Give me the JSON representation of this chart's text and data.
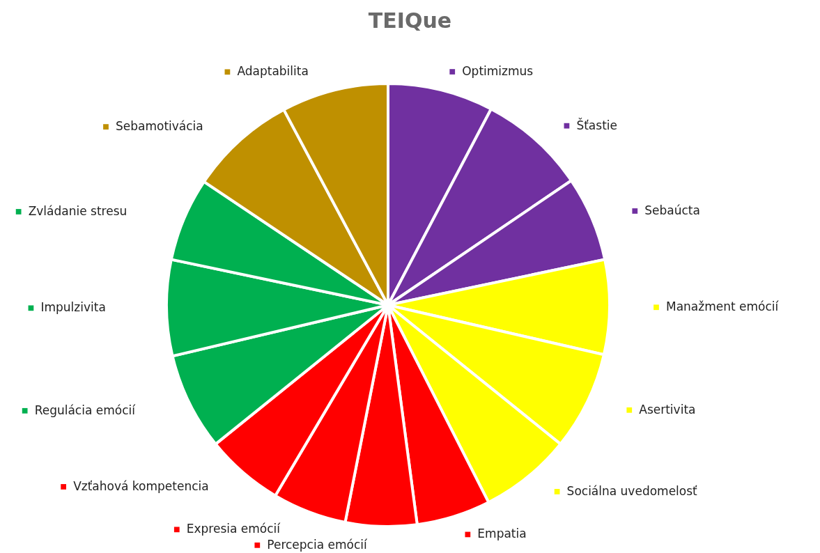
{
  "chart_data": {
    "type": "pie",
    "title": "TEIQue",
    "legend": "right",
    "categories": [
      "Optimizmus",
      "Šťastie",
      "Sebaúcta",
      "Manažment emócií",
      "Asertivita",
      "Sociálna uvedomelosť",
      "Empatia",
      "Percepcia emócií",
      "Expresia emócií",
      "Vzťahová kompetencia",
      "Regulácia emócií",
      "Impulzivita",
      "Zvládanie stresu",
      "Sebamotivácia",
      "Adaptabilita"
    ],
    "values": [
      7.7,
      7.8,
      6.2,
      6.9,
      7.2,
      6.7,
      5.4,
      5.2,
      5.4,
      5.7,
      7.1,
      7.0,
      6.1,
      7.8,
      7.8
    ],
    "colors": [
      "#7030a0",
      "#7030a0",
      "#7030a0",
      "#ffff00",
      "#ffff00",
      "#ffff00",
      "#ff0000",
      "#ff0000",
      "#ff0000",
      "#ff0000",
      "#00b050",
      "#00b050",
      "#00b050",
      "#bf9000",
      "#bf9000"
    ]
  }
}
